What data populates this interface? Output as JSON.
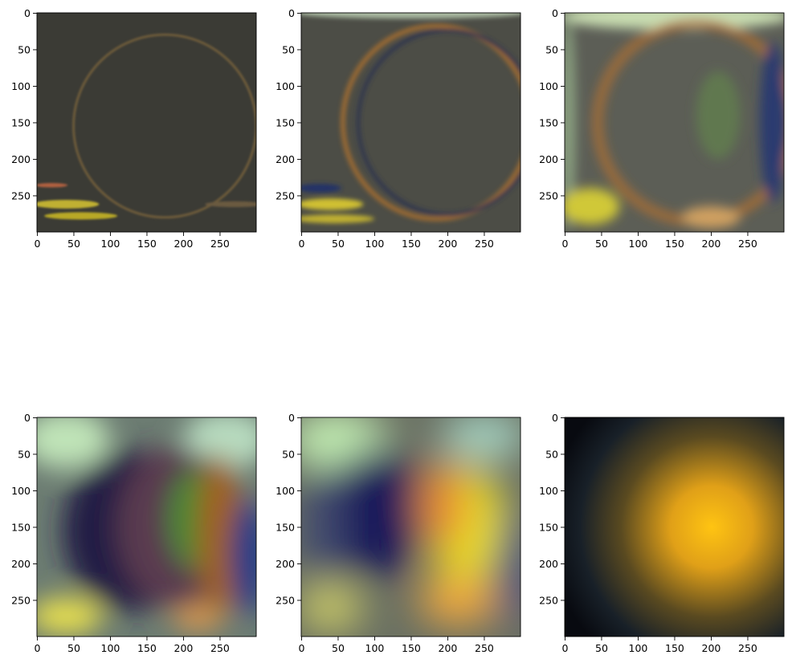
{
  "chart_data": [
    {
      "type": "image",
      "xlim": [
        -0.5,
        299.5
      ],
      "ylim": [
        299.5,
        -0.5
      ],
      "xticks": [
        0,
        50,
        100,
        150,
        200,
        250
      ],
      "yticks": [
        0,
        50,
        100,
        150,
        200,
        250
      ]
    },
    {
      "type": "image",
      "xlim": [
        -0.5,
        299.5
      ],
      "ylim": [
        299.5,
        -0.5
      ],
      "xticks": [
        0,
        50,
        100,
        150,
        200,
        250
      ],
      "yticks": [
        0,
        50,
        100,
        150,
        200,
        250
      ]
    },
    {
      "type": "image",
      "xlim": [
        -0.5,
        299.5
      ],
      "ylim": [
        299.5,
        -0.5
      ],
      "xticks": [
        0,
        50,
        100,
        150,
        200,
        250
      ],
      "yticks": [
        0,
        50,
        100,
        150,
        200,
        250
      ]
    },
    {
      "type": "image",
      "xlim": [
        -0.5,
        299.5
      ],
      "ylim": [
        299.5,
        -0.5
      ],
      "xticks": [
        0,
        50,
        100,
        150,
        200,
        250
      ],
      "yticks": [
        0,
        50,
        100,
        150,
        200,
        250
      ]
    },
    {
      "type": "image",
      "xlim": [
        -0.5,
        299.5
      ],
      "ylim": [
        299.5,
        -0.5
      ],
      "xticks": [
        0,
        50,
        100,
        150,
        200,
        250
      ],
      "yticks": [
        0,
        50,
        100,
        150,
        200,
        250
      ]
    },
    {
      "type": "image",
      "xlim": [
        -0.5,
        299.5
      ],
      "ylim": [
        299.5,
        -0.5
      ],
      "xticks": [
        0,
        50,
        100,
        150,
        200,
        250
      ],
      "yticks": [
        0,
        50,
        100,
        150,
        200,
        250
      ]
    }
  ]
}
